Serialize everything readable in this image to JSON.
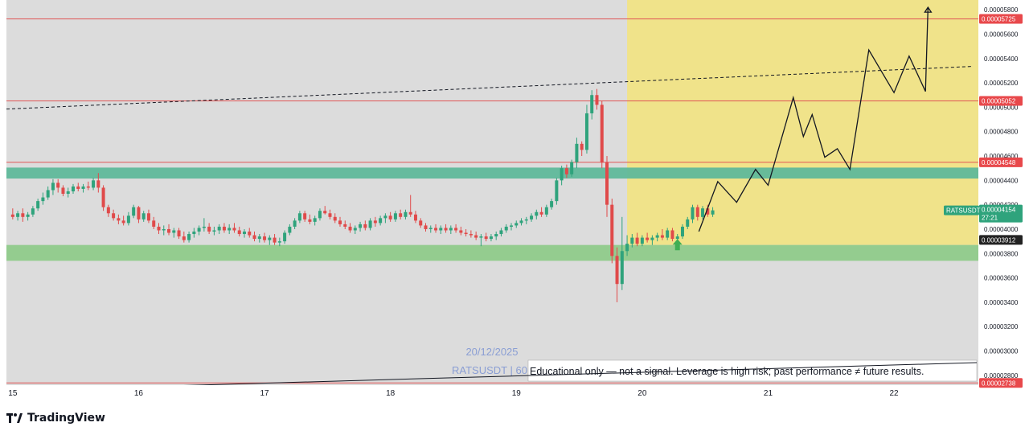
{
  "colors": {
    "background": "#ffffff",
    "plot_bg": "#dcdcdc",
    "projection_zone": "#f0e38a",
    "up_candle": "#2fa37c",
    "down_candle": "#e04a4a",
    "resistance_line": "#e05555",
    "supply_zone": "#5fb89a",
    "demand_zone": "#8fca8a",
    "projection_path": "#131722",
    "arrow": "#3fae54",
    "price_tag_red": "#e8484b",
    "price_tag_dark": "#222222",
    "current_price_tag": "#2fa37c"
  },
  "icons": {
    "logo": "tradingview-logo-icon",
    "signal": "up-arrow-icon"
  },
  "brand": {
    "name": "TradingView"
  },
  "chart_data": {
    "type": "candlestick",
    "symbol_label": "RATSUSDT",
    "countdown": "27:21",
    "current_price": 4.154e-05,
    "y_range": [
      2.72e-05,
      5.88e-05
    ],
    "x_range": [
      14.95,
      22.67
    ],
    "x_ticks": [
      {
        "x": 15,
        "label": "15"
      },
      {
        "x": 16,
        "label": "16"
      },
      {
        "x": 17,
        "label": "17"
      },
      {
        "x": 18,
        "label": "18"
      },
      {
        "x": 19,
        "label": "19"
      },
      {
        "x": 20,
        "label": "20"
      },
      {
        "x": 21,
        "label": "21"
      },
      {
        "x": 22,
        "label": "22"
      }
    ],
    "y_ticks": [
      {
        "value": 5.8e-05,
        "label": "0.00005800"
      },
      {
        "value": 5.6e-05,
        "label": "0.00005600"
      },
      {
        "value": 5.4e-05,
        "label": "0.00005400"
      },
      {
        "value": 5.2e-05,
        "label": "0.00005200"
      },
      {
        "value": 5e-05,
        "label": "0.00005000"
      },
      {
        "value": 4.8e-05,
        "label": "0.00004800"
      },
      {
        "value": 4.6e-05,
        "label": "0.00004600"
      },
      {
        "value": 4.4e-05,
        "label": "0.00004400"
      },
      {
        "value": 4.2e-05,
        "label": "0.00004200"
      },
      {
        "value": 4e-05,
        "label": "0.00004000"
      },
      {
        "value": 3.8e-05,
        "label": "0.00003800"
      },
      {
        "value": 3.6e-05,
        "label": "0.00003600"
      },
      {
        "value": 3.4e-05,
        "label": "0.00003400"
      },
      {
        "value": 3.2e-05,
        "label": "0.00003200"
      },
      {
        "value": 3e-05,
        "label": "0.00003000"
      },
      {
        "value": 2.8e-05,
        "label": "0.00002800"
      }
    ],
    "horizontal_levels": [
      {
        "value": 5.725e-05,
        "label": "0.00005725"
      },
      {
        "value": 5.052e-05,
        "label": "0.00005052"
      },
      {
        "value": 4.548e-05,
        "label": "0.00004548"
      },
      {
        "value": 2.738e-05,
        "label": "0.00002738"
      }
    ],
    "support_level": {
      "value": 3.912e-05,
      "label": "0.00003912"
    },
    "zones": [
      {
        "name": "supply",
        "from": 4.415e-05,
        "to": 4.505e-05
      },
      {
        "name": "demand",
        "from": 3.74e-05,
        "to": 3.87e-05
      }
    ],
    "projection_zone": {
      "x_from": 19.88,
      "x_to": 22.67,
      "y_from": 3.87e-05,
      "y_to": 5.88e-05
    },
    "trendline": [
      [
        14.95,
        4.985e-05
      ],
      [
        22.62,
        5.335e-05
      ]
    ],
    "projection_path": [
      [
        20.45,
        3.98e-05
      ],
      [
        20.6,
        4.39e-05
      ],
      [
        20.75,
        4.22e-05
      ],
      [
        20.9,
        4.49e-05
      ],
      [
        21.0,
        4.36e-05
      ],
      [
        21.2,
        5.08e-05
      ],
      [
        21.28,
        4.76e-05
      ],
      [
        21.35,
        4.94e-05
      ],
      [
        21.45,
        4.59e-05
      ],
      [
        21.55,
        4.66e-05
      ],
      [
        21.65,
        4.49e-05
      ],
      [
        21.8,
        5.47e-05
      ],
      [
        22.0,
        5.12e-05
      ],
      [
        22.12,
        5.42e-05
      ],
      [
        22.25,
        5.13e-05
      ],
      [
        22.27,
        5.82e-05
      ]
    ],
    "signal_arrow": {
      "x": 20.28,
      "y": 3.84e-05
    },
    "candles": [
      {
        "t": 15.0,
        "o": 4.12,
        "h": 4.17,
        "l": 4.08,
        "c": 4.1
      },
      {
        "t": 15.04,
        "o": 4.1,
        "h": 4.15,
        "l": 4.07,
        "c": 4.13
      },
      {
        "t": 15.08,
        "o": 4.13,
        "h": 4.17,
        "l": 4.06,
        "c": 4.1
      },
      {
        "t": 15.12,
        "o": 4.1,
        "h": 4.14,
        "l": 4.07,
        "c": 4.12
      },
      {
        "t": 15.16,
        "o": 4.12,
        "h": 4.19,
        "l": 4.1,
        "c": 4.17
      },
      {
        "t": 15.2,
        "o": 4.17,
        "h": 4.25,
        "l": 4.15,
        "c": 4.23
      },
      {
        "t": 15.24,
        "o": 4.23,
        "h": 4.3,
        "l": 4.2,
        "c": 4.26
      },
      {
        "t": 15.28,
        "o": 4.26,
        "h": 4.35,
        "l": 4.24,
        "c": 4.32
      },
      {
        "t": 15.32,
        "o": 4.32,
        "h": 4.41,
        "l": 4.28,
        "c": 4.38
      },
      {
        "t": 15.36,
        "o": 4.38,
        "h": 4.41,
        "l": 4.3,
        "c": 4.34
      },
      {
        "t": 15.4,
        "o": 4.34,
        "h": 4.36,
        "l": 4.27,
        "c": 4.29
      },
      {
        "t": 15.44,
        "o": 4.29,
        "h": 4.34,
        "l": 4.26,
        "c": 4.31
      },
      {
        "t": 15.48,
        "o": 4.31,
        "h": 4.37,
        "l": 4.29,
        "c": 4.35
      },
      {
        "t": 15.52,
        "o": 4.35,
        "h": 4.38,
        "l": 4.31,
        "c": 4.33
      },
      {
        "t": 15.56,
        "o": 4.33,
        "h": 4.37,
        "l": 4.3,
        "c": 4.35
      },
      {
        "t": 15.6,
        "o": 4.35,
        "h": 4.39,
        "l": 4.32,
        "c": 4.34
      },
      {
        "t": 15.64,
        "o": 4.34,
        "h": 4.42,
        "l": 4.32,
        "c": 4.4
      },
      {
        "t": 15.68,
        "o": 4.4,
        "h": 4.46,
        "l": 4.3,
        "c": 4.34
      },
      {
        "t": 15.72,
        "o": 4.34,
        "h": 4.36,
        "l": 4.15,
        "c": 4.18
      },
      {
        "t": 15.76,
        "o": 4.18,
        "h": 4.2,
        "l": 4.1,
        "c": 4.13
      },
      {
        "t": 15.8,
        "o": 4.13,
        "h": 4.16,
        "l": 4.07,
        "c": 4.09
      },
      {
        "t": 15.84,
        "o": 4.09,
        "h": 4.12,
        "l": 4.04,
        "c": 4.07
      },
      {
        "t": 15.88,
        "o": 4.07,
        "h": 4.11,
        "l": 4.03,
        "c": 4.05
      },
      {
        "t": 15.92,
        "o": 4.05,
        "h": 4.14,
        "l": 4.03,
        "c": 4.11
      },
      {
        "t": 15.96,
        "o": 4.11,
        "h": 4.2,
        "l": 4.09,
        "c": 4.18
      },
      {
        "t": 16.0,
        "o": 4.18,
        "h": 4.19,
        "l": 4.05,
        "c": 4.08
      },
      {
        "t": 16.04,
        "o": 4.08,
        "h": 4.15,
        "l": 4.06,
        "c": 4.13
      },
      {
        "t": 16.08,
        "o": 4.13,
        "h": 4.16,
        "l": 4.05,
        "c": 4.07
      },
      {
        "t": 16.12,
        "o": 4.07,
        "h": 4.1,
        "l": 4.0,
        "c": 4.02
      },
      {
        "t": 16.16,
        "o": 4.02,
        "h": 4.05,
        "l": 3.96,
        "c": 3.99
      },
      {
        "t": 16.2,
        "o": 3.99,
        "h": 4.03,
        "l": 3.95,
        "c": 4.0
      },
      {
        "t": 16.24,
        "o": 4.0,
        "h": 4.04,
        "l": 3.95,
        "c": 3.97
      },
      {
        "t": 16.28,
        "o": 3.97,
        "h": 4.01,
        "l": 3.93,
        "c": 3.99
      },
      {
        "t": 16.32,
        "o": 3.99,
        "h": 4.01,
        "l": 3.92,
        "c": 3.94
      },
      {
        "t": 16.36,
        "o": 3.94,
        "h": 3.98,
        "l": 3.89,
        "c": 3.91
      },
      {
        "t": 16.4,
        "o": 3.91,
        "h": 3.98,
        "l": 3.89,
        "c": 3.96
      },
      {
        "t": 16.44,
        "o": 3.96,
        "h": 4.01,
        "l": 3.93,
        "c": 3.98
      },
      {
        "t": 16.48,
        "o": 3.98,
        "h": 4.03,
        "l": 3.95,
        "c": 4.01
      },
      {
        "t": 16.52,
        "o": 4.01,
        "h": 4.09,
        "l": 3.98,
        "c": 4.02
      },
      {
        "t": 16.56,
        "o": 4.02,
        "h": 4.05,
        "l": 3.96,
        "c": 3.98
      },
      {
        "t": 16.6,
        "o": 3.98,
        "h": 4.02,
        "l": 3.95,
        "c": 3.99
      },
      {
        "t": 16.64,
        "o": 3.99,
        "h": 4.04,
        "l": 3.96,
        "c": 4.02
      },
      {
        "t": 16.68,
        "o": 4.02,
        "h": 4.05,
        "l": 3.97,
        "c": 3.99
      },
      {
        "t": 16.72,
        "o": 3.99,
        "h": 4.04,
        "l": 3.96,
        "c": 4.01
      },
      {
        "t": 16.76,
        "o": 4.01,
        "h": 4.05,
        "l": 3.97,
        "c": 3.99
      },
      {
        "t": 16.8,
        "o": 3.99,
        "h": 4.02,
        "l": 3.94,
        "c": 3.96
      },
      {
        "t": 16.84,
        "o": 3.96,
        "h": 4.0,
        "l": 3.93,
        "c": 3.98
      },
      {
        "t": 16.88,
        "o": 3.98,
        "h": 4.01,
        "l": 3.93,
        "c": 3.95
      },
      {
        "t": 16.92,
        "o": 3.95,
        "h": 3.98,
        "l": 3.9,
        "c": 3.92
      },
      {
        "t": 16.96,
        "o": 3.92,
        "h": 3.96,
        "l": 3.89,
        "c": 3.94
      },
      {
        "t": 17.0,
        "o": 3.94,
        "h": 3.97,
        "l": 3.89,
        "c": 3.91
      },
      {
        "t": 17.04,
        "o": 3.91,
        "h": 3.95,
        "l": 3.87,
        "c": 3.93
      },
      {
        "t": 17.08,
        "o": 3.93,
        "h": 3.96,
        "l": 3.87,
        "c": 3.89
      },
      {
        "t": 17.12,
        "o": 3.89,
        "h": 3.93,
        "l": 3.86,
        "c": 3.9
      },
      {
        "t": 17.16,
        "o": 3.9,
        "h": 3.99,
        "l": 3.88,
        "c": 3.97
      },
      {
        "t": 17.2,
        "o": 3.97,
        "h": 4.04,
        "l": 3.95,
        "c": 4.02
      },
      {
        "t": 17.24,
        "o": 4.02,
        "h": 4.09,
        "l": 4.0,
        "c": 4.07
      },
      {
        "t": 17.28,
        "o": 4.07,
        "h": 4.15,
        "l": 4.05,
        "c": 4.13
      },
      {
        "t": 17.32,
        "o": 4.13,
        "h": 4.15,
        "l": 4.06,
        "c": 4.08
      },
      {
        "t": 17.36,
        "o": 4.08,
        "h": 4.12,
        "l": 4.04,
        "c": 4.06
      },
      {
        "t": 17.4,
        "o": 4.06,
        "h": 4.11,
        "l": 4.03,
        "c": 4.09
      },
      {
        "t": 17.44,
        "o": 4.09,
        "h": 4.17,
        "l": 4.07,
        "c": 4.15
      },
      {
        "t": 17.48,
        "o": 4.15,
        "h": 4.19,
        "l": 4.12,
        "c": 4.13
      },
      {
        "t": 17.52,
        "o": 4.13,
        "h": 4.16,
        "l": 4.08,
        "c": 4.1
      },
      {
        "t": 17.56,
        "o": 4.1,
        "h": 4.13,
        "l": 4.05,
        "c": 4.07
      },
      {
        "t": 17.6,
        "o": 4.07,
        "h": 4.1,
        "l": 4.02,
        "c": 4.04
      },
      {
        "t": 17.64,
        "o": 4.04,
        "h": 4.07,
        "l": 4.0,
        "c": 4.02
      },
      {
        "t": 17.68,
        "o": 4.02,
        "h": 4.05,
        "l": 3.97,
        "c": 3.99
      },
      {
        "t": 17.72,
        "o": 3.99,
        "h": 4.03,
        "l": 3.96,
        "c": 4.01
      },
      {
        "t": 17.76,
        "o": 4.01,
        "h": 4.06,
        "l": 3.98,
        "c": 4.04
      },
      {
        "t": 17.8,
        "o": 4.04,
        "h": 4.07,
        "l": 3.99,
        "c": 4.01
      },
      {
        "t": 17.84,
        "o": 4.01,
        "h": 4.09,
        "l": 3.99,
        "c": 4.07
      },
      {
        "t": 17.88,
        "o": 4.07,
        "h": 4.1,
        "l": 4.02,
        "c": 4.05
      },
      {
        "t": 17.92,
        "o": 4.05,
        "h": 4.11,
        "l": 4.03,
        "c": 4.09
      },
      {
        "t": 17.96,
        "o": 4.09,
        "h": 4.13,
        "l": 4.05,
        "c": 4.11
      },
      {
        "t": 18.0,
        "o": 4.11,
        "h": 4.14,
        "l": 4.06,
        "c": 4.08
      },
      {
        "t": 18.04,
        "o": 4.08,
        "h": 4.15,
        "l": 4.06,
        "c": 4.13
      },
      {
        "t": 18.08,
        "o": 4.13,
        "h": 4.16,
        "l": 4.08,
        "c": 4.1
      },
      {
        "t": 18.12,
        "o": 4.1,
        "h": 4.16,
        "l": 4.08,
        "c": 4.14
      },
      {
        "t": 18.16,
        "o": 4.14,
        "h": 4.28,
        "l": 4.1,
        "c": 4.12
      },
      {
        "t": 18.2,
        "o": 4.12,
        "h": 4.15,
        "l": 4.05,
        "c": 4.07
      },
      {
        "t": 18.24,
        "o": 4.07,
        "h": 4.09,
        "l": 4.01,
        "c": 4.03
      },
      {
        "t": 18.28,
        "o": 4.03,
        "h": 4.05,
        "l": 3.98,
        "c": 4.0
      },
      {
        "t": 18.32,
        "o": 4.0,
        "h": 4.03,
        "l": 3.97,
        "c": 4.01
      },
      {
        "t": 18.36,
        "o": 4.01,
        "h": 4.04,
        "l": 3.97,
        "c": 3.99
      },
      {
        "t": 18.4,
        "o": 3.99,
        "h": 4.03,
        "l": 3.96,
        "c": 4.01
      },
      {
        "t": 18.44,
        "o": 4.01,
        "h": 4.04,
        "l": 3.97,
        "c": 3.99
      },
      {
        "t": 18.48,
        "o": 3.99,
        "h": 4.03,
        "l": 3.96,
        "c": 4.01
      },
      {
        "t": 18.52,
        "o": 4.01,
        "h": 4.04,
        "l": 3.97,
        "c": 3.99
      },
      {
        "t": 18.56,
        "o": 3.99,
        "h": 4.02,
        "l": 3.95,
        "c": 3.97
      },
      {
        "t": 18.6,
        "o": 3.97,
        "h": 4.0,
        "l": 3.94,
        "c": 3.96
      },
      {
        "t": 18.64,
        "o": 3.96,
        "h": 3.99,
        "l": 3.93,
        "c": 3.95
      },
      {
        "t": 18.68,
        "o": 3.95,
        "h": 3.98,
        "l": 3.91,
        "c": 3.93
      },
      {
        "t": 18.72,
        "o": 3.93,
        "h": 3.96,
        "l": 3.86,
        "c": 3.94
      },
      {
        "t": 18.76,
        "o": 3.94,
        "h": 3.97,
        "l": 3.9,
        "c": 3.92
      },
      {
        "t": 18.8,
        "o": 3.92,
        "h": 3.96,
        "l": 3.9,
        "c": 3.94
      },
      {
        "t": 18.84,
        "o": 3.94,
        "h": 3.98,
        "l": 3.91,
        "c": 3.96
      },
      {
        "t": 18.88,
        "o": 3.96,
        "h": 4.01,
        "l": 3.94,
        "c": 3.99
      },
      {
        "t": 18.92,
        "o": 3.99,
        "h": 4.04,
        "l": 3.97,
        "c": 4.02
      },
      {
        "t": 18.96,
        "o": 4.02,
        "h": 4.05,
        "l": 3.99,
        "c": 4.03
      },
      {
        "t": 19.0,
        "o": 4.03,
        "h": 4.07,
        "l": 4.01,
        "c": 4.05
      },
      {
        "t": 19.04,
        "o": 4.05,
        "h": 4.09,
        "l": 4.03,
        "c": 4.07
      },
      {
        "t": 19.08,
        "o": 4.07,
        "h": 4.1,
        "l": 4.04,
        "c": 4.08
      },
      {
        "t": 19.12,
        "o": 4.08,
        "h": 4.13,
        "l": 4.06,
        "c": 4.11
      },
      {
        "t": 19.16,
        "o": 4.11,
        "h": 4.16,
        "l": 4.08,
        "c": 4.14
      },
      {
        "t": 19.2,
        "o": 4.14,
        "h": 4.18,
        "l": 4.1,
        "c": 4.12
      },
      {
        "t": 19.24,
        "o": 4.12,
        "h": 4.2,
        "l": 4.1,
        "c": 4.18
      },
      {
        "t": 19.28,
        "o": 4.18,
        "h": 4.25,
        "l": 4.16,
        "c": 4.23
      },
      {
        "t": 19.32,
        "o": 4.23,
        "h": 4.42,
        "l": 4.2,
        "c": 4.4
      },
      {
        "t": 19.36,
        "o": 4.4,
        "h": 4.52,
        "l": 4.36,
        "c": 4.5
      },
      {
        "t": 19.4,
        "o": 4.5,
        "h": 4.53,
        "l": 4.42,
        "c": 4.45
      },
      {
        "t": 19.44,
        "o": 4.45,
        "h": 4.57,
        "l": 4.43,
        "c": 4.55
      },
      {
        "t": 19.48,
        "o": 4.55,
        "h": 4.75,
        "l": 4.5,
        "c": 4.7
      },
      {
        "t": 19.52,
        "o": 4.7,
        "h": 4.72,
        "l": 4.6,
        "c": 4.65
      },
      {
        "t": 19.56,
        "o": 4.65,
        "h": 5.02,
        "l": 4.62,
        "c": 4.95
      },
      {
        "t": 19.6,
        "o": 4.95,
        "h": 5.14,
        "l": 4.9,
        "c": 5.1
      },
      {
        "t": 19.64,
        "o": 5.1,
        "h": 5.15,
        "l": 4.98,
        "c": 5.02
      },
      {
        "t": 19.68,
        "o": 5.02,
        "h": 5.05,
        "l": 4.5,
        "c": 4.55
      },
      {
        "t": 19.72,
        "o": 4.55,
        "h": 4.6,
        "l": 4.1,
        "c": 4.2
      },
      {
        "t": 19.76,
        "o": 4.2,
        "h": 4.25,
        "l": 3.72,
        "c": 3.78
      },
      {
        "t": 19.8,
        "o": 3.78,
        "h": 3.85,
        "l": 3.4,
        "c": 3.55
      },
      {
        "t": 19.84,
        "o": 3.55,
        "h": 4.1,
        "l": 3.5,
        "c": 3.82
      },
      {
        "t": 19.88,
        "o": 3.82,
        "h": 3.95,
        "l": 3.78,
        "c": 3.88
      },
      {
        "t": 19.92,
        "o": 3.88,
        "h": 3.96,
        "l": 3.85,
        "c": 3.93
      },
      {
        "t": 19.96,
        "o": 3.93,
        "h": 3.97,
        "l": 3.86,
        "c": 3.88
      },
      {
        "t": 20.0,
        "o": 3.88,
        "h": 3.95,
        "l": 3.86,
        "c": 3.93
      },
      {
        "t": 20.04,
        "o": 3.93,
        "h": 3.97,
        "l": 3.89,
        "c": 3.91
      },
      {
        "t": 20.08,
        "o": 3.91,
        "h": 3.95,
        "l": 3.87,
        "c": 3.93
      },
      {
        "t": 20.12,
        "o": 3.93,
        "h": 3.97,
        "l": 3.9,
        "c": 3.95
      },
      {
        "t": 20.16,
        "o": 3.95,
        "h": 4.0,
        "l": 3.91,
        "c": 3.93
      },
      {
        "t": 20.2,
        "o": 3.93,
        "h": 4.01,
        "l": 3.91,
        "c": 3.99
      },
      {
        "t": 20.24,
        "o": 3.99,
        "h": 4.01,
        "l": 3.9,
        "c": 3.92
      },
      {
        "t": 20.28,
        "o": 3.92,
        "h": 3.96,
        "l": 3.89,
        "c": 3.94
      },
      {
        "t": 20.32,
        "o": 3.94,
        "h": 4.04,
        "l": 3.92,
        "c": 4.02
      },
      {
        "t": 20.36,
        "o": 4.02,
        "h": 4.1,
        "l": 4.0,
        "c": 4.08
      },
      {
        "t": 20.4,
        "o": 4.08,
        "h": 4.2,
        "l": 4.05,
        "c": 4.18
      },
      {
        "t": 20.44,
        "o": 4.18,
        "h": 4.2,
        "l": 4.07,
        "c": 4.1
      },
      {
        "t": 20.48,
        "o": 4.1,
        "h": 4.19,
        "l": 4.08,
        "c": 4.17
      },
      {
        "t": 20.52,
        "o": 4.17,
        "h": 4.2,
        "l": 4.1,
        "c": 4.12
      },
      {
        "t": 20.56,
        "o": 4.12,
        "h": 4.18,
        "l": 4.1,
        "c": 4.154
      }
    ]
  },
  "watermark": {
    "date": "20/12/2025",
    "symbol": "RATSUSDT | 60",
    "disclaimer": "Educational only — not a signal. Leverage is high risk; past performance ≠ future results."
  }
}
